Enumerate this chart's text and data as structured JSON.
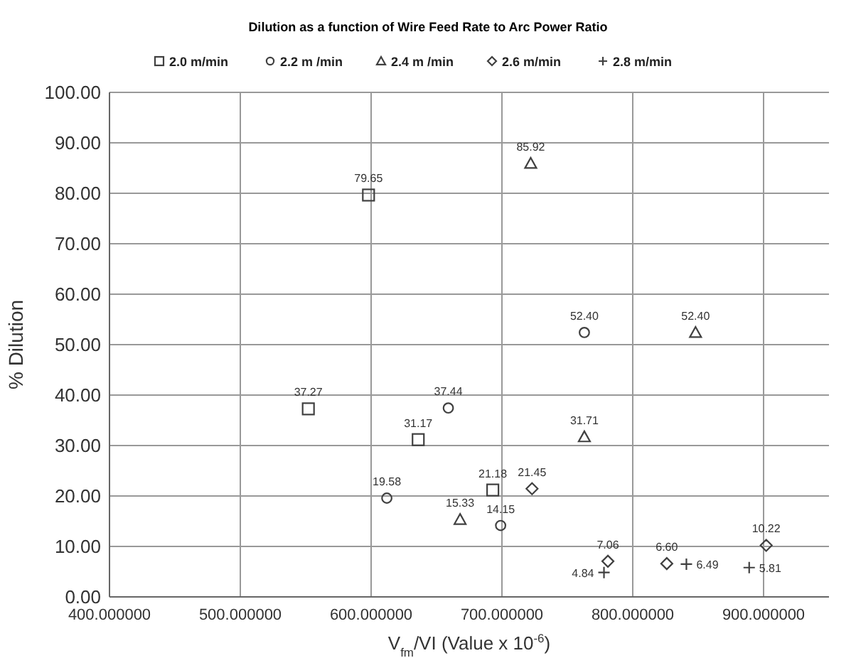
{
  "chart_data": {
    "type": "scatter",
    "title": "Dilution as a function of  Wire Feed Rate to Arc Power Ratio",
    "xlabel": "V$_{fm}$/VI (Value x 10$^{-6}$)",
    "ylabel": "% Dilution",
    "xlim": [
      400,
      950
    ],
    "xticks": [
      {
        "value": 400,
        "label": "400.000000"
      },
      {
        "value": 500,
        "label": "500.000000"
      },
      {
        "value": 600,
        "label": "600.000000"
      },
      {
        "value": 700,
        "label": "700.000000"
      },
      {
        "value": 800,
        "label": "800.000000"
      },
      {
        "value": 900,
        "label": "900.000000"
      }
    ],
    "ylim": [
      0,
      100
    ],
    "yticks": [
      {
        "value": 0,
        "label": "0.00"
      },
      {
        "value": 10,
        "label": "10.00"
      },
      {
        "value": 20,
        "label": "20.00"
      },
      {
        "value": 30,
        "label": "30.00"
      },
      {
        "value": 40,
        "label": "40.00"
      },
      {
        "value": 50,
        "label": "50.00"
      },
      {
        "value": 60,
        "label": "60.00"
      },
      {
        "value": 70,
        "label": "70.00"
      },
      {
        "value": 80,
        "label": "80.00"
      },
      {
        "value": 90,
        "label": "90.00"
      },
      {
        "value": 100,
        "label": "100.00"
      }
    ],
    "grid": true,
    "legend": "top",
    "series": [
      {
        "name": "2.0 m/min",
        "color": "#404040",
        "marker": "square",
        "x": [
          552,
          598,
          636,
          693
        ],
        "values": [
          37.27,
          79.65,
          31.17,
          21.18
        ],
        "value_labels": [
          "37.27",
          "79.65",
          "31.17",
          "21.18"
        ]
      },
      {
        "name": "2.2 m /min",
        "color": "#404040",
        "marker": "circle",
        "x": [
          612,
          659,
          699,
          763
        ],
        "values": [
          19.58,
          37.44,
          14.15,
          52.4
        ],
        "value_labels": [
          "19.58",
          "37.44",
          "14.15",
          "52.40"
        ]
      },
      {
        "name": "2.4 m /min",
        "color": "#404040",
        "marker": "triangle",
        "x": [
          668,
          722,
          763,
          848
        ],
        "values": [
          15.33,
          85.92,
          31.71,
          52.4
        ],
        "value_labels": [
          "15.33",
          "85.92",
          "31.71",
          "52.40"
        ]
      },
      {
        "name": "2.6 m/min",
        "color": "#404040",
        "marker": "diamond",
        "x": [
          723,
          781,
          826,
          902
        ],
        "values": [
          21.45,
          7.06,
          6.6,
          10.22
        ],
        "value_labels": [
          "21.45",
          "7.06",
          "6.60",
          "10.22"
        ]
      },
      {
        "name": "2.8 m/min",
        "color": "#404040",
        "marker": "cross",
        "x": [
          778,
          841,
          889
        ],
        "values": [
          4.84,
          6.49,
          5.81
        ],
        "value_labels": [
          "4.84",
          "6.49",
          "5.81"
        ]
      }
    ]
  }
}
